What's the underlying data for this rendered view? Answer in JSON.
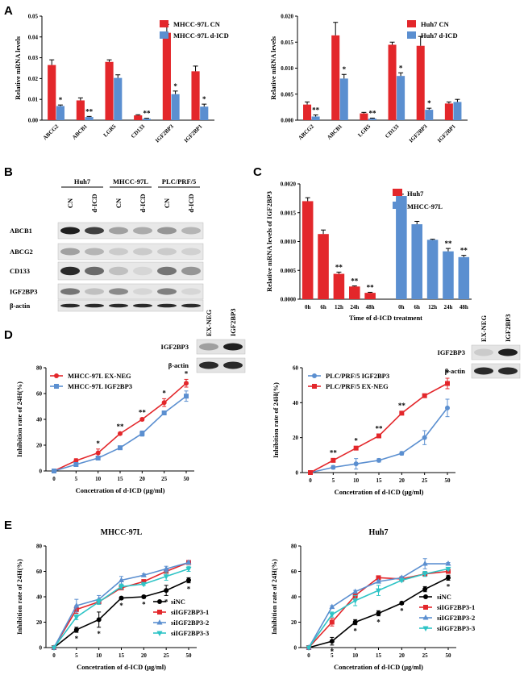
{
  "panel_labels": [
    "A",
    "B",
    "C",
    "D",
    "E"
  ],
  "colors": {
    "red": "#e3272b",
    "blue": "#5b8fd0",
    "black": "#000000",
    "cyan": "#2ec4c6"
  },
  "chart_data": [
    {
      "id": "A1",
      "type": "bar",
      "panel": "A",
      "categories": [
        "ABCG2",
        "ABCB1",
        "LGR5",
        "CD133",
        "IGF2BP3",
        "IGF2BP1"
      ],
      "series": [
        {
          "name": "MHCC-97L CN",
          "values": [
            0.0265,
            0.0095,
            0.028,
            0.0023,
            0.042,
            0.0235
          ],
          "err": [
            0.0025,
            0.0012,
            0.001,
            0.0003,
            0.004,
            0.0025
          ]
        },
        {
          "name": "MHCC-97L d-ICD",
          "values": [
            0.0068,
            0.0015,
            0.0203,
            0.0007,
            0.0125,
            0.0065
          ],
          "err": [
            0.0005,
            0.0003,
            0.0015,
            0.0002,
            0.0015,
            0.0012
          ]
        }
      ],
      "significance": [
        "*",
        "**",
        "",
        "**",
        "*",
        "*"
      ],
      "ylabel": "Relative mRNA levels",
      "ylim": [
        0,
        0.05
      ],
      "yticks": [
        "0.00",
        "0.01",
        "0.02",
        "0.03",
        "0.04",
        "0.05"
      ]
    },
    {
      "id": "A2",
      "type": "bar",
      "panel": "A",
      "categories": [
        "ABCG2",
        "ABCB1",
        "LGR5",
        "CD133",
        "IGF2BP3",
        "IGF2BP1"
      ],
      "series": [
        {
          "name": "Huh7 CN",
          "values": [
            0.003,
            0.0163,
            0.0013,
            0.0145,
            0.0143,
            0.0032
          ],
          "err": [
            0.0005,
            0.0025,
            0.0002,
            0.0005,
            0.0018,
            0.0003
          ]
        },
        {
          "name": "Huh7 d-ICD",
          "values": [
            0.0007,
            0.008,
            0.0003,
            0.0085,
            0.002,
            0.0035
          ],
          "err": [
            0.0003,
            0.0008,
            0.0001,
            0.0006,
            0.0003,
            0.0005
          ]
        }
      ],
      "significance": [
        "**",
        "*",
        "**",
        "*",
        "*",
        ""
      ],
      "ylabel": "Relative mRNA levels",
      "ylim": [
        0,
        0.02
      ],
      "yticks": [
        "0.000",
        "0.005",
        "0.010",
        "0.015",
        "0.020"
      ]
    },
    {
      "id": "C",
      "type": "bar",
      "panel": "C",
      "groups": [
        {
          "name": "Huh7",
          "categories": [
            "0h",
            "6h",
            "12h",
            "24h",
            "48h"
          ],
          "values": [
            0.0017,
            0.00113,
            0.00044,
            0.00022,
            0.00011
          ],
          "err": [
            6e-05,
            7e-05,
            3e-05,
            1e-05,
            1e-05
          ],
          "significance": [
            "",
            "",
            "**",
            "**",
            "**"
          ]
        },
        {
          "name": "MHCC-97L",
          "categories": [
            "0h",
            "6h",
            "12h",
            "24h",
            "48h"
          ],
          "values": [
            0.00179,
            0.0013,
            0.00103,
            0.00083,
            0.00073
          ],
          "err": [
            3e-05,
            5e-05,
            1e-05,
            5e-05,
            3e-05
          ],
          "significance": [
            "",
            "",
            "",
            "**",
            "**"
          ]
        }
      ],
      "ylabel": "Relative mRNA levels of IGF2BP3",
      "xlabel": "Time of d-ICD treatment",
      "ylim": [
        0,
        0.002
      ],
      "yticks": [
        "0.0000",
        "0.0005",
        "0.0010",
        "0.0015",
        "0.0020"
      ]
    },
    {
      "id": "D1",
      "type": "line",
      "panel": "D",
      "x": [
        "0",
        "5",
        "10",
        "15",
        "20",
        "25",
        "50"
      ],
      "series": [
        {
          "name": "MHCC-97L EX-NEG",
          "values": [
            0,
            8,
            14,
            29,
            40,
            53,
            68
          ],
          "err": [
            0,
            1.5,
            3,
            1,
            1,
            3,
            3
          ]
        },
        {
          "name": "MHCC-97L IGF2BP3",
          "values": [
            0,
            5,
            10,
            18,
            29,
            45,
            58
          ],
          "err": [
            0,
            1,
            1,
            1,
            2,
            1,
            4
          ]
        }
      ],
      "significance": [
        "",
        "",
        "*",
        "**",
        "**",
        "*",
        "*"
      ],
      "ylabel": "Inhibition rate of 24H(%)",
      "xlabel": "Concetration of d-ICD (μg/ml)",
      "ylim": [
        0,
        80
      ],
      "yticks": [
        "0",
        "20",
        "40",
        "60",
        "80"
      ]
    },
    {
      "id": "D2",
      "type": "line",
      "panel": "D",
      "x": [
        "0",
        "5",
        "10",
        "15",
        "20",
        "25",
        "50"
      ],
      "series": [
        {
          "name": "PLC/PRF/5 IGF2BP3",
          "values": [
            0,
            3,
            5,
            7,
            11,
            20,
            37
          ],
          "err": [
            0,
            1,
            3,
            1,
            1,
            4,
            5
          ]
        },
        {
          "name": "PLC/PRF/5 EX-NEG",
          "values": [
            0,
            7,
            14,
            21,
            34,
            44,
            51
          ],
          "err": [
            0,
            1,
            1,
            1,
            1,
            1,
            3
          ]
        }
      ],
      "significance": [
        "",
        "**",
        "*",
        "**",
        "**",
        "",
        "*"
      ],
      "ylabel": "Inhibition rate of 24H(%)",
      "xlabel": "Concetration of d-ICD (μg/ml)",
      "ylim": [
        0,
        60
      ],
      "yticks": [
        "0",
        "20",
        "40",
        "60"
      ]
    },
    {
      "id": "E1",
      "type": "line",
      "panel": "E",
      "title": "MHCC-97L",
      "x": [
        "0",
        "5",
        "10",
        "15",
        "20",
        "25",
        "50"
      ],
      "series": [
        {
          "name": "siNC",
          "values": [
            0,
            14,
            22,
            39,
            40,
            45,
            53
          ],
          "err": [
            0,
            2,
            6,
            1,
            1,
            4,
            2
          ]
        },
        {
          "name": "siIGF2BP3-1",
          "values": [
            0,
            30,
            36,
            47,
            52,
            60,
            67
          ],
          "err": [
            0,
            3,
            1,
            1,
            1,
            1,
            1
          ]
        },
        {
          "name": "siIGF2BP3-2",
          "values": [
            0,
            33,
            38,
            53,
            57,
            62,
            67
          ],
          "err": [
            0,
            5,
            3,
            3,
            1,
            2,
            1
          ]
        },
        {
          "name": "siIGF2BP3-3",
          "values": [
            0,
            24,
            36,
            48,
            50,
            56,
            62
          ],
          "err": [
            0,
            2,
            2,
            2,
            1,
            3,
            2
          ]
        }
      ],
      "significance": [
        "",
        "*",
        "*",
        "*",
        "*",
        "*",
        "*"
      ],
      "ylabel": "Inhibition rate of 24H(%)",
      "xlabel": "Concetration of d-ICD (μg/ml)",
      "ylim": [
        0,
        80
      ],
      "yticks": [
        "0",
        "20",
        "40",
        "60",
        "80"
      ]
    },
    {
      "id": "E2",
      "type": "line",
      "panel": "E",
      "title": "Huh7",
      "x": [
        "0",
        "5",
        "10",
        "15",
        "20",
        "25",
        "50"
      ],
      "series": [
        {
          "name": "siNC",
          "values": [
            0,
            5,
            20,
            27,
            35,
            46,
            55
          ],
          "err": [
            0,
            3,
            2,
            2,
            1,
            2,
            2
          ]
        },
        {
          "name": "siIGF2BP3-1",
          "values": [
            0,
            20,
            41,
            55,
            54,
            58,
            60
          ],
          "err": [
            0,
            3,
            2,
            1,
            1,
            1,
            1
          ]
        },
        {
          "name": "siIGF2BP3-2",
          "values": [
            0,
            32,
            44,
            52,
            55,
            66,
            66
          ],
          "err": [
            0,
            1,
            1,
            1,
            1,
            4,
            1
          ]
        },
        {
          "name": "siIGF2BP3-3",
          "values": [
            0,
            26,
            37,
            45,
            53,
            58,
            62
          ],
          "err": [
            0,
            2,
            4,
            4,
            1,
            2,
            1
          ]
        }
      ],
      "significance": [
        "",
        "*",
        "*",
        "*",
        "*",
        "*",
        "*"
      ],
      "ylabel": "Inhibition rate of 24H(%)",
      "xlabel": "Concetration of d-ICD (μg/ml)",
      "ylim": [
        0,
        80
      ],
      "yticks": [
        "0",
        "20",
        "40",
        "60",
        "80"
      ]
    }
  ],
  "blot_b": {
    "cell_lines": [
      "Huh7",
      "MHCC-97L",
      "PLC/PRF/5"
    ],
    "lanes": [
      "CN",
      "d-ICD",
      "CN",
      "d-ICD",
      "CN",
      "d-ICD"
    ],
    "proteins": [
      "ABCB1",
      "ABCG2",
      "CD133",
      "IGF2BP3",
      "β-actin"
    ],
    "intensity": [
      [
        0.95,
        0.8,
        0.35,
        0.3,
        0.4,
        0.25
      ],
      [
        0.35,
        0.25,
        0.15,
        0.15,
        0.15,
        0.12
      ],
      [
        0.9,
        0.6,
        0.2,
        0.1,
        0.55,
        0.4
      ],
      [
        0.55,
        0.2,
        0.45,
        0.1,
        0.5,
        0.1
      ],
      [
        0.9,
        0.9,
        0.9,
        0.9,
        0.9,
        0.9
      ]
    ]
  },
  "blot_d1": {
    "lanes": [
      "EX-NEG",
      "IGF2BP3"
    ],
    "proteins": [
      "IGF2BP3",
      "β-actin"
    ],
    "intensity": [
      [
        0.35,
        0.95
      ],
      [
        0.9,
        0.9
      ]
    ]
  },
  "blot_d2": {
    "lanes": [
      "EX-NEG",
      "IGF2BP3"
    ],
    "proteins": [
      "IGF2BP3",
      "β-actin"
    ],
    "intensity": [
      [
        0.15,
        0.95
      ],
      [
        0.9,
        0.9
      ]
    ]
  }
}
